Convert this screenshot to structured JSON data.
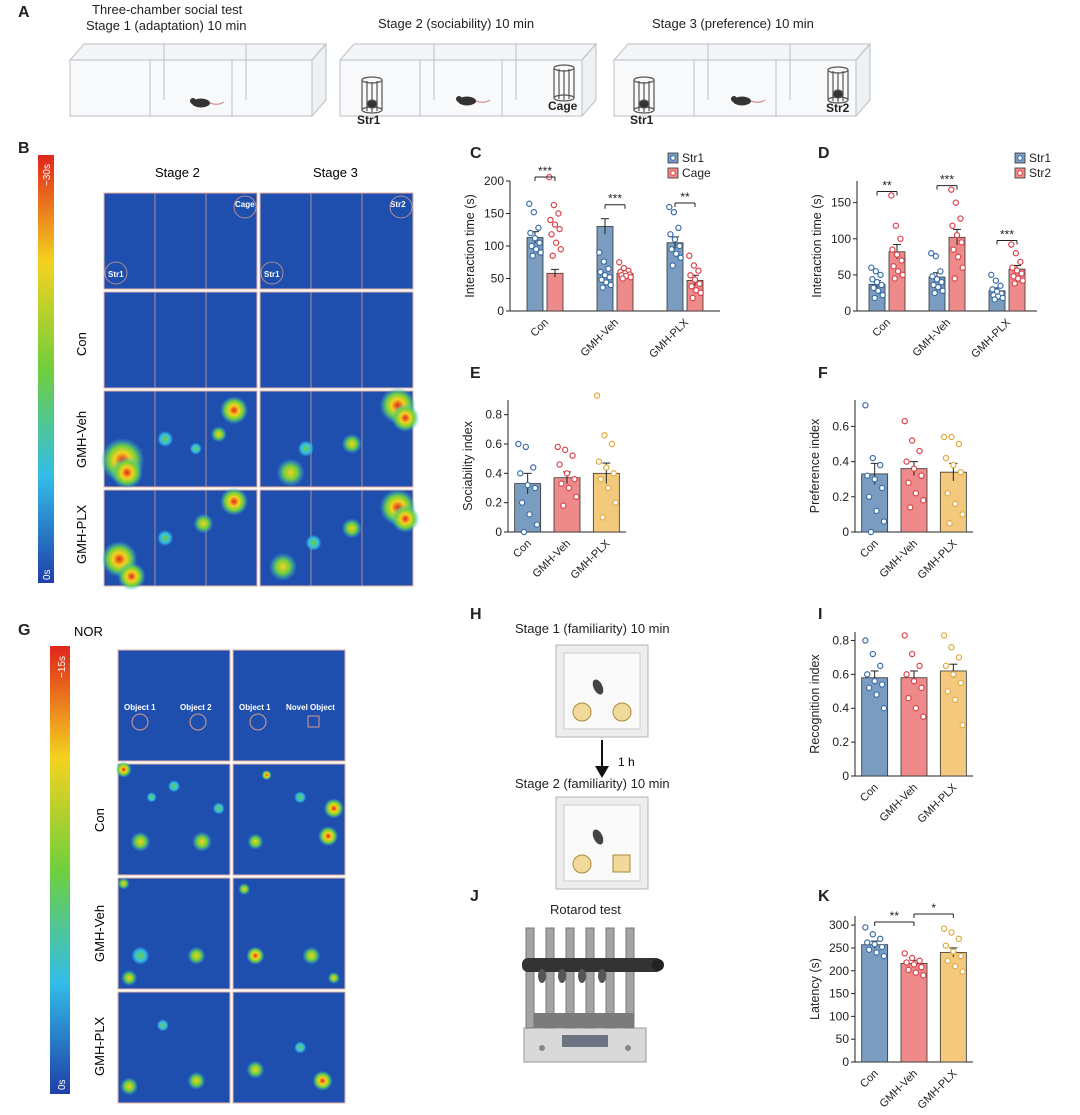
{
  "panel_labels": {
    "A": "A",
    "B": "B",
    "C": "C",
    "D": "D",
    "E": "E",
    "F": "F",
    "G": "G",
    "H": "H",
    "I": "I",
    "J": "J",
    "K": "K"
  },
  "panelA": {
    "title_line1": "Three-chamber social test",
    "stage1": "Stage 1 (adaptation) 10 min",
    "stage2": "Stage 2 (sociability) 10 min",
    "stage3": "Stage 3 (preference) 10 min",
    "str1": "Str1",
    "cage": "Cage",
    "str2": "Str2"
  },
  "panelB": {
    "col_stage2": "Stage 2",
    "col_stage3": "Stage 3",
    "rows": [
      "Con",
      "GMH-Veh",
      "GMH-PLX"
    ],
    "scale_max": "~30s",
    "scale_min": "0s",
    "tag_cage": "Cage",
    "tag_str1": "Str1",
    "tag_str2": "Str2"
  },
  "panelG": {
    "title": "NOR",
    "rows": [
      "Con",
      "GMH-Veh",
      "GMH-PLX"
    ],
    "scale_max": "~15s",
    "scale_min": "0s",
    "obj1": "Object 1",
    "obj2": "Object 2",
    "novel": "Novel Object"
  },
  "panelH": {
    "stage1": "Stage 1 (familiarity) 10 min",
    "interval": "1 h",
    "stage2": "Stage 2 (familiarity) 10 min"
  },
  "panelJ": {
    "title": "Rotarod test"
  },
  "colors": {
    "blue": "#7a9cc0",
    "red": "#ee8a8a",
    "yellow": "#f3c97e",
    "blue_pt": "#3b6ea8",
    "red_pt": "#d9434a",
    "yellow_pt": "#e0a93a"
  },
  "chart_data": [
    {
      "id": "C",
      "type": "bar",
      "ylabel": "Interaction time (s)",
      "ylim": [
        0,
        200
      ],
      "ticks": [
        0,
        50,
        100,
        150,
        200
      ],
      "categories": [
        "Con",
        "GMH-Veh",
        "GMH-PLX"
      ],
      "series": [
        {
          "name": "Str1",
          "values": [
            113,
            130,
            105
          ],
          "errors": [
            9,
            12,
            9
          ]
        },
        {
          "name": "Cage",
          "values": [
            58,
            58,
            47
          ],
          "errors": [
            6,
            4,
            8
          ]
        }
      ],
      "points": [
        [
          [
            165,
            152,
            128,
            120,
            112,
            105,
            100,
            95,
            90,
            85
          ],
          [
            206,
            163,
            150,
            140,
            133,
            126,
            118,
            105,
            95,
            85
          ]
        ],
        [
          [
            90,
            76,
            65,
            60,
            55,
            52,
            48,
            44,
            40,
            36
          ],
          [
            75,
            66,
            62,
            60,
            58,
            56,
            55,
            54,
            52,
            50
          ]
        ],
        [
          [
            160,
            152,
            128,
            118,
            110,
            100,
            95,
            88,
            82,
            70
          ],
          [
            85,
            70,
            62,
            55,
            48,
            42,
            38,
            32,
            28,
            20
          ]
        ]
      ],
      "sig": [
        "***",
        "***",
        "**"
      ],
      "legend": [
        "Str1",
        "Cage"
      ]
    },
    {
      "id": "D",
      "type": "bar",
      "ylabel": "Interaction time (s)",
      "ylim": [
        0,
        180
      ],
      "ticks": [
        0,
        50,
        100,
        150
      ],
      "categories": [
        "Con",
        "GMH-Veh",
        "GMH-PLX"
      ],
      "series": [
        {
          "name": "Str1",
          "values": [
            37,
            47,
            28
          ],
          "errors": [
            5,
            6,
            4
          ]
        },
        {
          "name": "Str2",
          "values": [
            82,
            102,
            58
          ],
          "errors": [
            10,
            11,
            5
          ]
        }
      ],
      "points": [
        [
          [
            60,
            55,
            50,
            44,
            40,
            36,
            32,
            28,
            22,
            18
          ],
          [
            160,
            118,
            100,
            85,
            78,
            70,
            62,
            55,
            50,
            45
          ]
        ],
        [
          [
            80,
            76,
            55,
            48,
            44,
            40,
            36,
            33,
            28,
            25
          ],
          [
            168,
            150,
            128,
            118,
            105,
            95,
            85,
            75,
            60,
            45
          ]
        ],
        [
          [
            50,
            42,
            35,
            30,
            27,
            24,
            22,
            20,
            18,
            16
          ],
          [
            92,
            80,
            68,
            60,
            56,
            52,
            48,
            45,
            42,
            38
          ]
        ]
      ],
      "sig": [
        "**",
        "***",
        "***"
      ],
      "legend": [
        "Str1",
        "Str2"
      ]
    },
    {
      "id": "E",
      "type": "bar",
      "ylabel": "Sociability index",
      "ylim": [
        0,
        0.9
      ],
      "ticks": [
        0,
        0.2,
        0.4,
        0.6,
        0.8
      ],
      "categories": [
        "Con",
        "GMH-Veh",
        "GMH-PLX"
      ],
      "values": [
        0.33,
        0.37,
        0.4
      ],
      "errors": [
        0.07,
        0.04,
        0.07
      ],
      "points": [
        [
          0.6,
          0.58,
          0.44,
          0.4,
          0.32,
          0.3,
          0.2,
          0.12,
          0.05,
          0.0
        ],
        [
          0.58,
          0.56,
          0.52,
          0.46,
          0.4,
          0.36,
          0.33,
          0.3,
          0.24,
          0.18
        ],
        [
          0.93,
          0.66,
          0.6,
          0.48,
          0.44,
          0.4,
          0.36,
          0.3,
          0.2,
          0.1
        ]
      ]
    },
    {
      "id": "F",
      "type": "bar",
      "ylabel": "Preference index",
      "ylim": [
        0,
        0.75
      ],
      "ticks": [
        0,
        0.2,
        0.4,
        0.6
      ],
      "categories": [
        "Con",
        "GMH-Veh",
        "GMH-PLX"
      ],
      "values": [
        0.33,
        0.36,
        0.34
      ],
      "errors": [
        0.06,
        0.04,
        0.05
      ],
      "points": [
        [
          0.72,
          0.42,
          0.38,
          0.32,
          0.3,
          0.25,
          0.2,
          0.12,
          0.06,
          0.0
        ],
        [
          0.63,
          0.52,
          0.46,
          0.4,
          0.36,
          0.32,
          0.28,
          0.22,
          0.18,
          0.14
        ],
        [
          0.54,
          0.54,
          0.5,
          0.42,
          0.38,
          0.34,
          0.22,
          0.16,
          0.1,
          0.05
        ]
      ]
    },
    {
      "id": "I",
      "type": "bar",
      "ylabel": "Recognition index",
      "ylim": [
        0,
        0.85
      ],
      "ticks": [
        0,
        0.2,
        0.4,
        0.6,
        0.8
      ],
      "categories": [
        "Con",
        "GMH-Veh",
        "GMH-PLX"
      ],
      "values": [
        0.58,
        0.58,
        0.62
      ],
      "errors": [
        0.04,
        0.04,
        0.04
      ],
      "points": [
        [
          0.8,
          0.72,
          0.65,
          0.6,
          0.56,
          0.54,
          0.52,
          0.48,
          0.4
        ],
        [
          0.83,
          0.72,
          0.65,
          0.6,
          0.56,
          0.52,
          0.46,
          0.4,
          0.35
        ],
        [
          0.83,
          0.76,
          0.7,
          0.65,
          0.6,
          0.55,
          0.5,
          0.45,
          0.3
        ]
      ]
    },
    {
      "id": "K",
      "type": "bar",
      "ylabel": "Latency (s)",
      "ylim": [
        0,
        320
      ],
      "ticks": [
        0,
        50,
        100,
        150,
        200,
        250,
        300
      ],
      "categories": [
        "Con",
        "GMH-Veh",
        "GMH-PLX"
      ],
      "values": [
        257,
        216,
        240
      ],
      "errors": [
        8,
        7,
        10
      ],
      "points": [
        [
          295,
          280,
          270,
          262,
          258,
          252,
          246,
          240,
          232
        ],
        [
          238,
          228,
          222,
          218,
          214,
          208,
          202,
          196,
          190
        ],
        [
          292,
          284,
          270,
          255,
          242,
          232,
          222,
          210,
          198
        ]
      ],
      "sig_pairs": [
        {
          "from": 0,
          "to": 1,
          "text": "**"
        },
        {
          "from": 1,
          "to": 2,
          "text": "*"
        }
      ]
    }
  ]
}
